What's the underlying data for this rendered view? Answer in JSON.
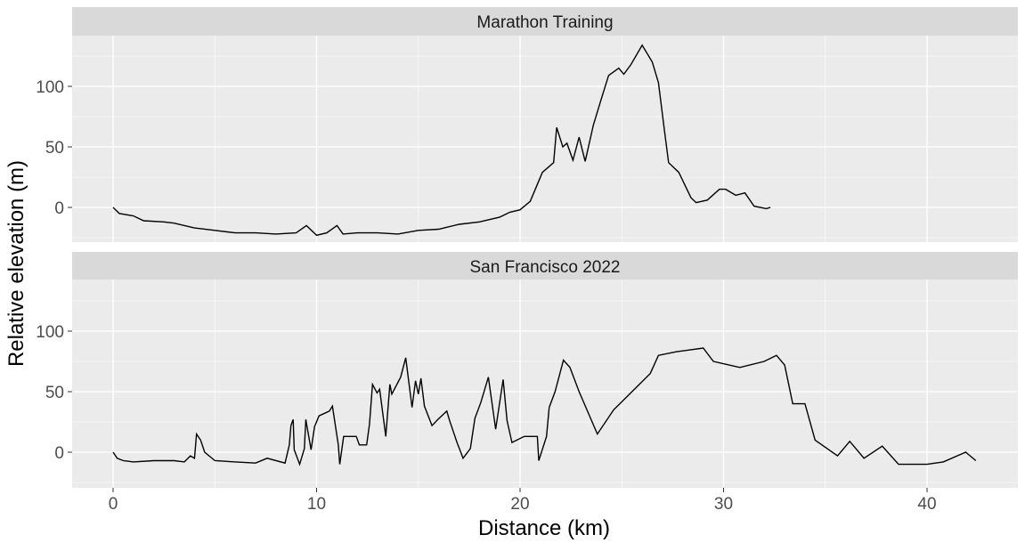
{
  "chart_data": {
    "type": "line",
    "xlabel": "Distance (km)",
    "ylabel": "Relative elevation (m)",
    "xlim": [
      -2,
      44.5
    ],
    "ylim": [
      -29,
      142
    ],
    "x_ticks": [
      0,
      10,
      20,
      30,
      40
    ],
    "y_ticks": [
      0,
      50,
      100
    ],
    "grid": true,
    "facets": [
      {
        "title": "Marathon Training",
        "points": [
          [
            0,
            0
          ],
          [
            0.3,
            -5
          ],
          [
            1,
            -7
          ],
          [
            1.5,
            -11
          ],
          [
            2.5,
            -12
          ],
          [
            3,
            -13
          ],
          [
            4,
            -17
          ],
          [
            5,
            -19
          ],
          [
            6,
            -21
          ],
          [
            7,
            -21
          ],
          [
            8,
            -22
          ],
          [
            9,
            -21
          ],
          [
            9.5,
            -15
          ],
          [
            10,
            -23
          ],
          [
            10.5,
            -21
          ],
          [
            11,
            -15
          ],
          [
            11.3,
            -22
          ],
          [
            12,
            -21
          ],
          [
            13,
            -21
          ],
          [
            14,
            -22
          ],
          [
            15,
            -19
          ],
          [
            16,
            -18
          ],
          [
            17,
            -14
          ],
          [
            18,
            -12
          ],
          [
            19,
            -8
          ],
          [
            19.5,
            -4
          ],
          [
            20,
            -2
          ],
          [
            20.5,
            5
          ],
          [
            21.1,
            29
          ],
          [
            21.65,
            37
          ],
          [
            21.8,
            66
          ],
          [
            22.1,
            50
          ],
          [
            22.3,
            53
          ],
          [
            22.6,
            39
          ],
          [
            22.9,
            58
          ],
          [
            23.2,
            38
          ],
          [
            23.6,
            68
          ],
          [
            24.0,
            90
          ],
          [
            24.35,
            109
          ],
          [
            24.85,
            115
          ],
          [
            25.1,
            110
          ],
          [
            25.45,
            118
          ],
          [
            26.0,
            134
          ],
          [
            26.5,
            120
          ],
          [
            26.8,
            103
          ],
          [
            27.1,
            63
          ],
          [
            27.3,
            37
          ],
          [
            27.8,
            29
          ],
          [
            28.4,
            8
          ],
          [
            28.65,
            4
          ],
          [
            29.2,
            6
          ],
          [
            29.8,
            15
          ],
          [
            30.1,
            15
          ],
          [
            30.6,
            10
          ],
          [
            31.05,
            12
          ],
          [
            31.5,
            1
          ],
          [
            32.1,
            -1
          ],
          [
            32.3,
            0
          ]
        ]
      },
      {
        "title": "San Francisco 2022",
        "points": [
          [
            0,
            0
          ],
          [
            0.2,
            -5
          ],
          [
            0.5,
            -7
          ],
          [
            1,
            -8
          ],
          [
            2,
            -7
          ],
          [
            3,
            -7
          ],
          [
            3.5,
            -8
          ],
          [
            3.8,
            -3
          ],
          [
            4,
            -5
          ],
          [
            4.1,
            15
          ],
          [
            4.3,
            10
          ],
          [
            4.5,
            0
          ],
          [
            5,
            -7
          ],
          [
            6,
            -8
          ],
          [
            7,
            -9
          ],
          [
            7.57,
            -5
          ],
          [
            8.45,
            -9
          ],
          [
            8.66,
            6
          ],
          [
            8.74,
            22
          ],
          [
            8.85,
            27
          ],
          [
            8.9,
            2
          ],
          [
            9.17,
            -10
          ],
          [
            9.4,
            3
          ],
          [
            9.47,
            27
          ],
          [
            9.73,
            2
          ],
          [
            9.9,
            21
          ],
          [
            10.12,
            30
          ],
          [
            10.63,
            34
          ],
          [
            10.78,
            38
          ],
          [
            11.07,
            6
          ],
          [
            11.14,
            -10
          ],
          [
            11.33,
            13
          ],
          [
            11.95,
            13
          ],
          [
            12.1,
            6
          ],
          [
            12.46,
            6
          ],
          [
            12.6,
            23
          ],
          [
            12.75,
            56
          ],
          [
            12.97,
            49
          ],
          [
            13.1,
            52
          ],
          [
            13.4,
            13
          ],
          [
            13.6,
            56
          ],
          [
            13.7,
            48
          ],
          [
            14.13,
            62
          ],
          [
            14.38,
            78
          ],
          [
            14.69,
            37
          ],
          [
            14.86,
            59
          ],
          [
            15.0,
            48
          ],
          [
            15.13,
            61
          ],
          [
            15.3,
            38
          ],
          [
            15.67,
            22
          ],
          [
            15.96,
            27
          ],
          [
            16.4,
            34
          ],
          [
            16.54,
            26
          ],
          [
            16.9,
            8
          ],
          [
            17.2,
            -5
          ],
          [
            17.56,
            3
          ],
          [
            17.78,
            28
          ],
          [
            18.07,
            41
          ],
          [
            18.44,
            62
          ],
          [
            18.8,
            19
          ],
          [
            19.17,
            60
          ],
          [
            19.36,
            26
          ],
          [
            19.6,
            8
          ],
          [
            20.2,
            13
          ],
          [
            20.85,
            13
          ],
          [
            20.92,
            -7
          ],
          [
            21.3,
            13
          ],
          [
            21.43,
            37
          ],
          [
            21.72,
            50
          ],
          [
            22.13,
            76
          ],
          [
            22.45,
            70
          ],
          [
            22.9,
            50
          ],
          [
            23.8,
            15
          ],
          [
            24.6,
            35
          ],
          [
            25.5,
            50
          ],
          [
            26.4,
            65
          ],
          [
            26.8,
            80
          ],
          [
            27.7,
            83
          ],
          [
            29,
            86
          ],
          [
            29.5,
            75
          ],
          [
            30.8,
            70
          ],
          [
            32,
            75
          ],
          [
            32.6,
            80
          ],
          [
            33,
            72
          ],
          [
            33.4,
            40
          ],
          [
            34,
            40
          ],
          [
            34.5,
            10
          ],
          [
            35.6,
            -3
          ],
          [
            36.2,
            9
          ],
          [
            36.9,
            -5
          ],
          [
            37.8,
            5
          ],
          [
            38.6,
            -10
          ],
          [
            40,
            -10
          ],
          [
            40.8,
            -8
          ],
          [
            41.9,
            0
          ],
          [
            42.4,
            -7
          ]
        ]
      }
    ]
  }
}
